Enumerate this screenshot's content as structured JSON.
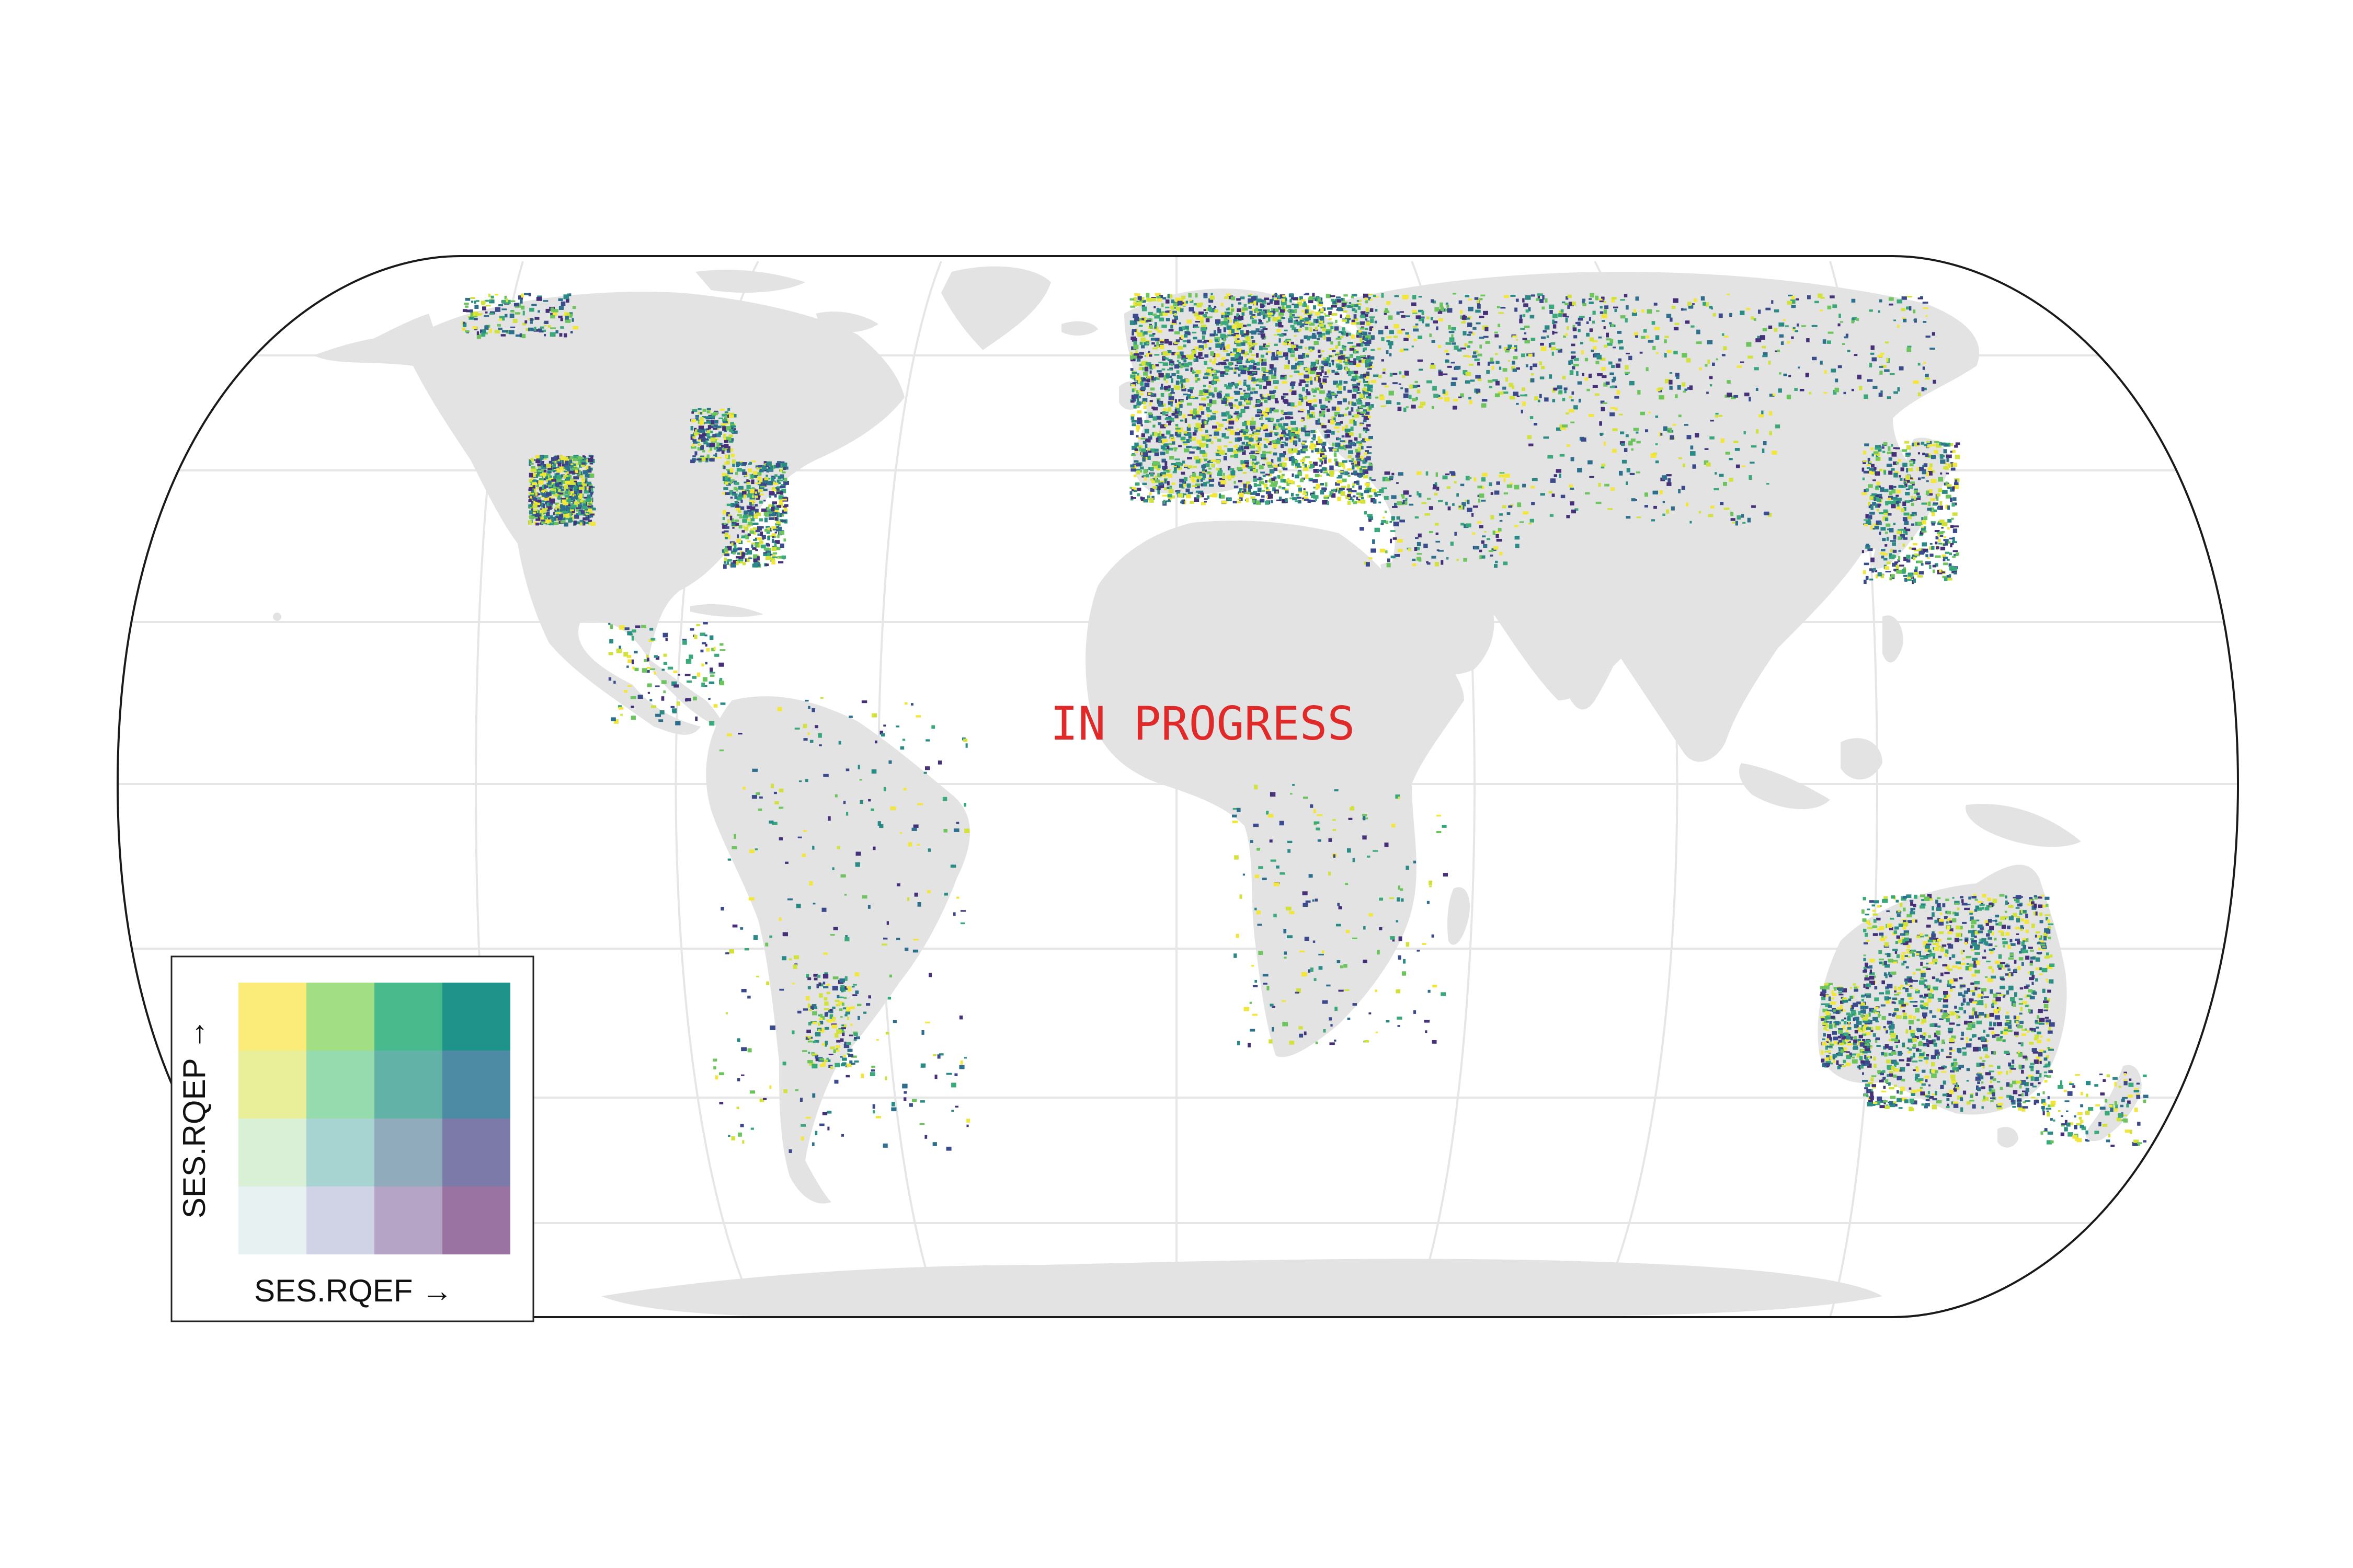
{
  "overlay": {
    "watermark": "IN PROGRESS"
  },
  "legend": {
    "x_label": "SES.RQEF →",
    "y_label": "SES.RQEP →",
    "rows_top_to_bottom": [
      [
        "#fbec7a",
        "#a2df84",
        "#48ba8c",
        "#1f928a"
      ],
      [
        "#e9ef99",
        "#95dbae",
        "#63b2a8",
        "#4d8aa3"
      ],
      [
        "#d9efd6",
        "#a7d3d0",
        "#8fabbc",
        "#7c7aa8"
      ],
      [
        "#e7f1f1",
        "#cfd3e5",
        "#b5a4c5",
        "#9a73a3"
      ]
    ]
  },
  "colors": {
    "land": "#e3e3e3",
    "graticule": "#e6e6e6",
    "frame": "#1a1a1a",
    "data_palette": [
      "#3b4a8c",
      "#46307a",
      "#2f6f8e",
      "#2a8a85",
      "#39a87a",
      "#6cc45c",
      "#d2e23a",
      "#f2e63a"
    ]
  }
}
